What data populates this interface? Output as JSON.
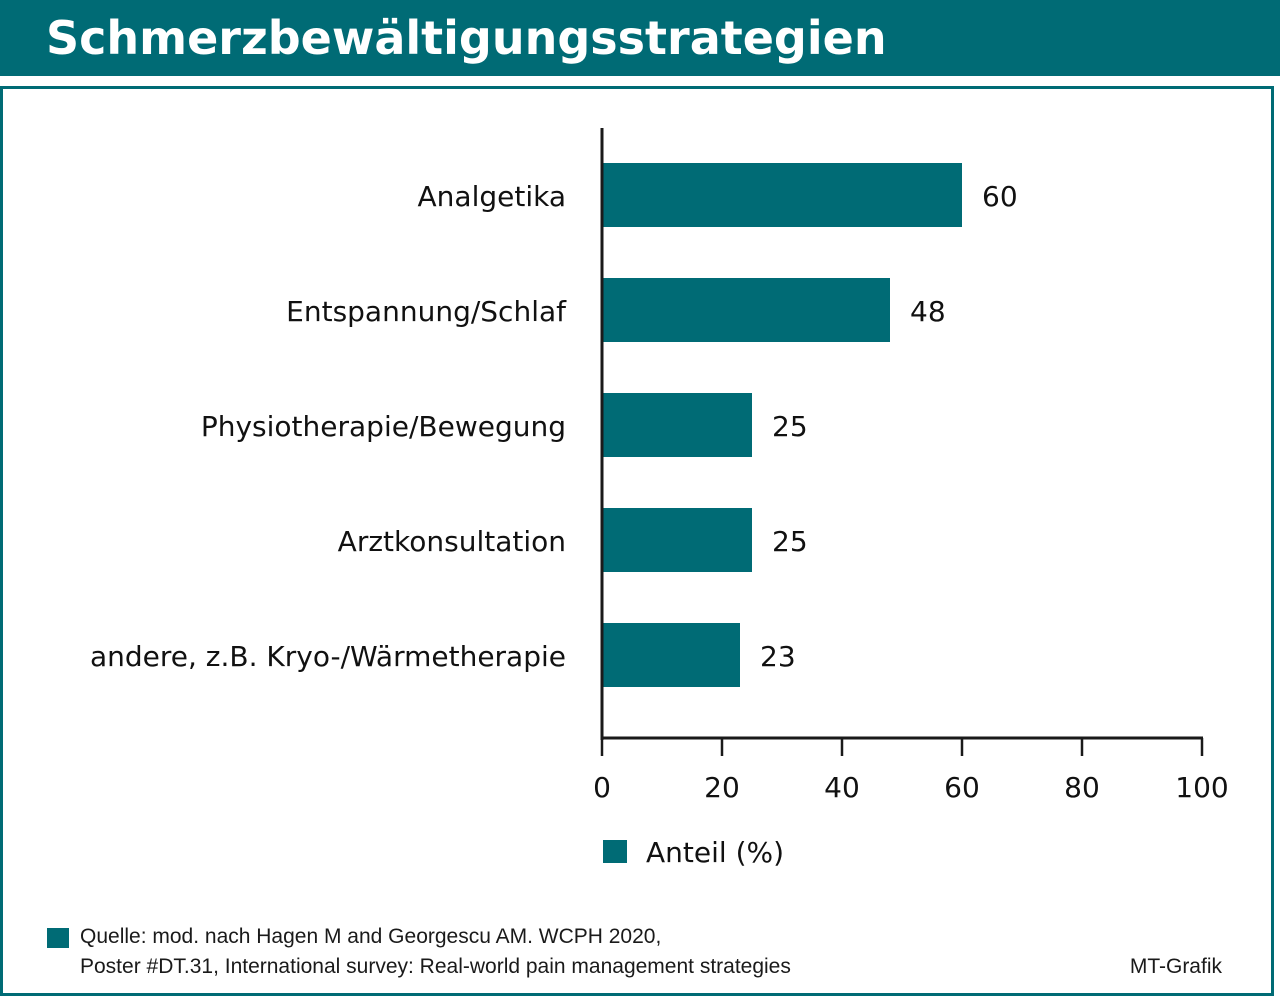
{
  "header": {
    "title": "Schmerzbewältigungsstrategien"
  },
  "colors": {
    "accent": "#006b75",
    "text": "#111111"
  },
  "chart_data": {
    "type": "bar",
    "orientation": "horizontal",
    "categories": [
      "Analgetika",
      "Entspannung/Schlaf",
      "Physiotherapie/Bewegung",
      "Arztkonsultation",
      "andere, z.B. Kryo-/Wärmetherapie"
    ],
    "series": [
      {
        "name": "Anteil (%)",
        "values": [
          60,
          48,
          25,
          25,
          23
        ]
      }
    ],
    "data_labels": [
      "60",
      "48",
      "25",
      "25",
      "23"
    ],
    "xlim": [
      0,
      100
    ],
    "xticks": [
      0,
      20,
      40,
      60,
      80,
      100
    ],
    "xtick_labels": [
      "0",
      "20",
      "40",
      "60",
      "80",
      "100"
    ],
    "xlabel": "",
    "ylabel": "",
    "grid": false,
    "legend_position": "bottom"
  },
  "footer": {
    "source_line1": "Quelle: mod. nach Hagen M and Georgescu AM. WCPH 2020,",
    "source_line2": "Poster #DT.31, International survey: Real-world pain management strategies",
    "credit": "MT-Grafik"
  }
}
